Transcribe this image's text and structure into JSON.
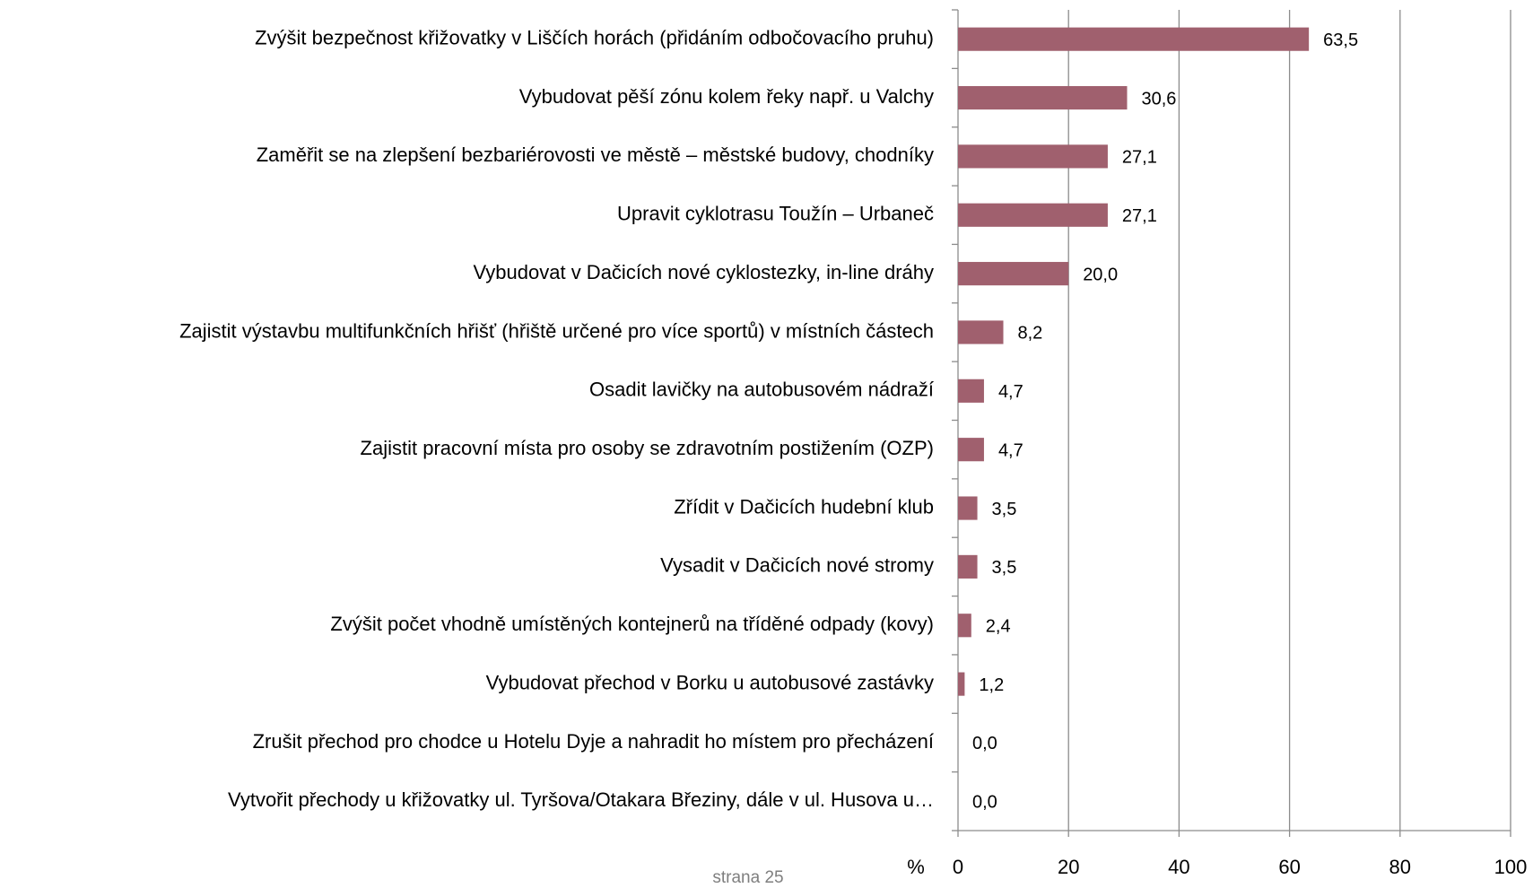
{
  "chart_data": {
    "type": "barh",
    "categories": [
      "Zvýšit bezpečnost křižovatky v Liščích horách (přidáním odbočovacího pruhu)",
      "Vybudovat pěší zónu kolem řeky např. u Valchy",
      "Zaměřit se na zlepšení bezbariérovosti ve městě – městské budovy, chodníky",
      "Upravit cyklotrasu Toužín – Urbaneč",
      "Vybudovat v Dačicích nové cyklostezky, in-line dráhy",
      "Zajistit výstavbu multifunkčních hřišť (hřiště určené pro více sportů) v místních částech",
      "Osadit lavičky na autobusovém nádraží",
      "Zajistit pracovní místa pro osoby se zdravotním postižením (OZP)",
      "Zřídit v Dačicích hudební klub",
      "Vysadit v Dačicích nové stromy",
      "Zvýšit počet vhodně umístěných kontejnerů na tříděné odpady (kovy)",
      "Vybudovat přechod v Borku u autobusové zastávky",
      "Zrušit přechod pro chodce u Hotelu Dyje a nahradit ho místem pro přecházení",
      "Vytvořit přechody u křižovatky ul. Tyršova/Otakara Březiny, dále v ul. Husova u…"
    ],
    "values": [
      63.5,
      30.6,
      27.1,
      27.1,
      20.0,
      8.2,
      4.7,
      4.7,
      3.5,
      3.5,
      2.4,
      1.2,
      0.0,
      0.0
    ],
    "value_labels": [
      "63,5",
      "30,6",
      "27,1",
      "27,1",
      "20,0",
      "8,2",
      "4,7",
      "4,7",
      "3,5",
      "3,5",
      "2,4",
      "1,2",
      "0,0",
      "0,0"
    ],
    "color": "#a0606e",
    "xlabel": "%",
    "xlim": [
      0,
      100
    ],
    "xticks": [
      0,
      20,
      40,
      60,
      80,
      100
    ],
    "grid": true
  },
  "footer": "strana 25"
}
